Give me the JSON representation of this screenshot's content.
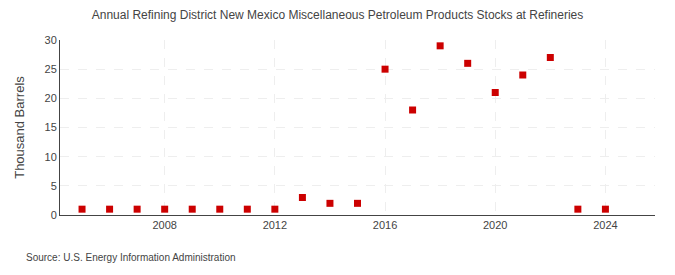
{
  "chart_data": {
    "type": "scatter",
    "title": "Annual Refining District New Mexico Miscellaneous Petroleum Products Stocks at Refineries",
    "y_label": "Thousand Barrels",
    "source": "Source: U.S. Energy Information Administration",
    "x": [
      2005,
      2006,
      2007,
      2008,
      2009,
      2010,
      2011,
      2012,
      2013,
      2014,
      2015,
      2016,
      2017,
      2018,
      2019,
      2020,
      2021,
      2022,
      2023,
      2024
    ],
    "values": [
      1,
      1,
      1,
      1,
      1,
      1,
      1,
      1,
      3,
      2,
      2,
      25,
      18,
      29,
      26,
      21,
      24,
      27,
      1,
      1
    ],
    "color": "#cc0000",
    "marker": "square",
    "xlim": [
      2004.2,
      2025.8
    ],
    "xticks": [
      2008,
      2012,
      2016,
      2020,
      2024
    ],
    "ylim": [
      0,
      30
    ],
    "yticks": [
      0,
      5,
      10,
      15,
      20,
      25,
      30
    ],
    "grid": true
  }
}
